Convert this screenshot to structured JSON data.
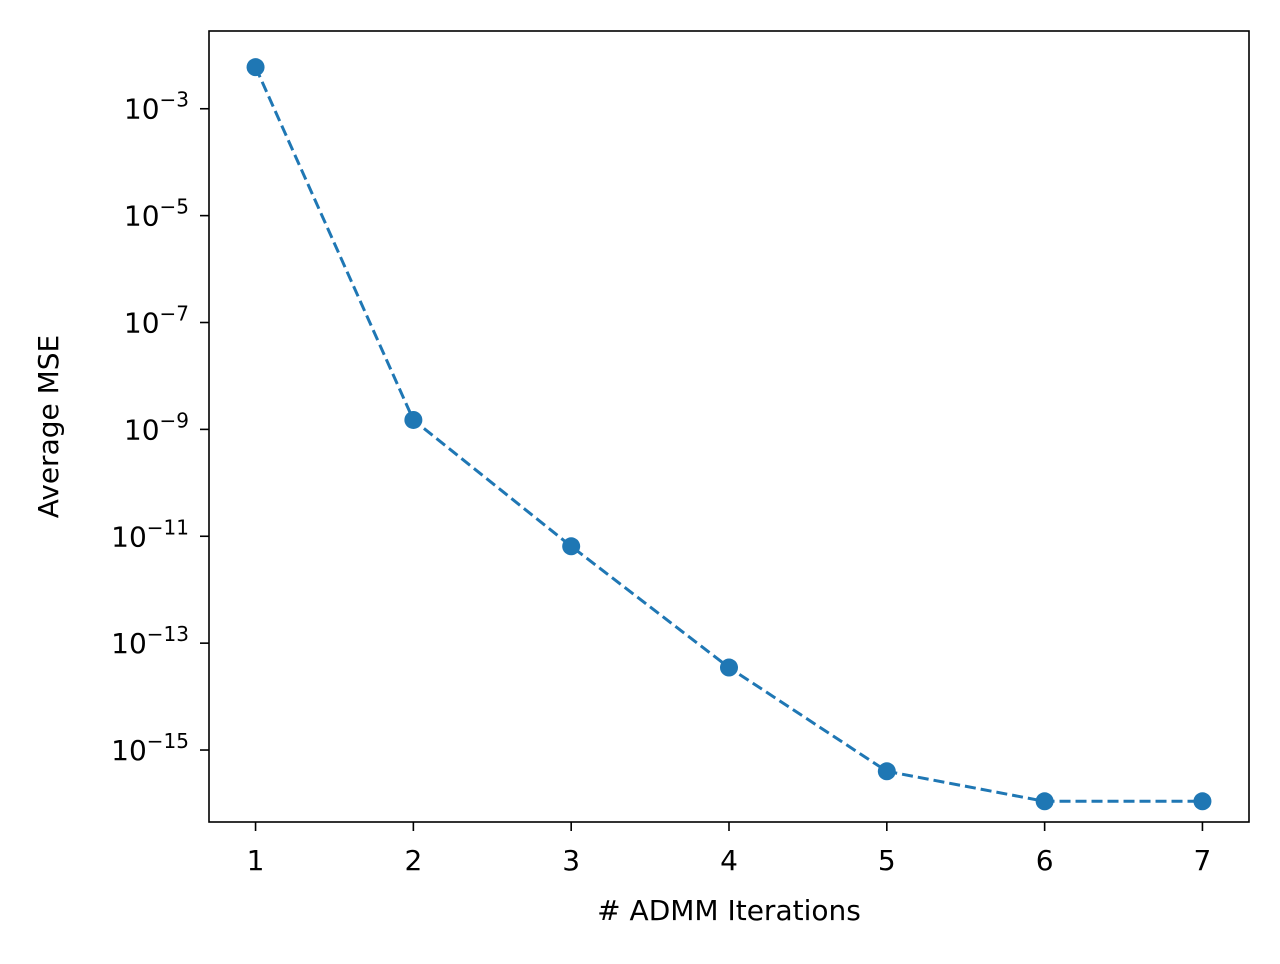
{
  "chart_data": {
    "type": "line",
    "title": "",
    "xlabel": "# ADMM Iterations",
    "ylabel": "Average MSE",
    "yscale": "log",
    "x": [
      1,
      2,
      3,
      4,
      5,
      6,
      7
    ],
    "series": [
      {
        "values": [
          0.006,
          1.5e-09,
          6.5e-12,
          3.5e-14,
          4e-16,
          1.1e-16,
          1.1e-16
        ],
        "color": "#1f77b4",
        "linestyle": "dashed",
        "marker": "circle"
      }
    ],
    "xticks": [
      1,
      2,
      3,
      4,
      5,
      6,
      7
    ],
    "yticks": [
      {
        "base": "10",
        "exp": "−3",
        "value": 0.001
      },
      {
        "base": "10",
        "exp": "−5",
        "value": 1e-05
      },
      {
        "base": "10",
        "exp": "−7",
        "value": 1e-07
      },
      {
        "base": "10",
        "exp": "−9",
        "value": 1e-09
      },
      {
        "base": "10",
        "exp": "−11",
        "value": 1e-11
      },
      {
        "base": "10",
        "exp": "−13",
        "value": 1e-13
      },
      {
        "base": "10",
        "exp": "−15",
        "value": 1e-15
      }
    ],
    "xlim": [
      0.705,
      7.295
    ],
    "ylim": [
      4.5e-17,
      0.0285
    ],
    "grid": false,
    "legend": "none"
  }
}
